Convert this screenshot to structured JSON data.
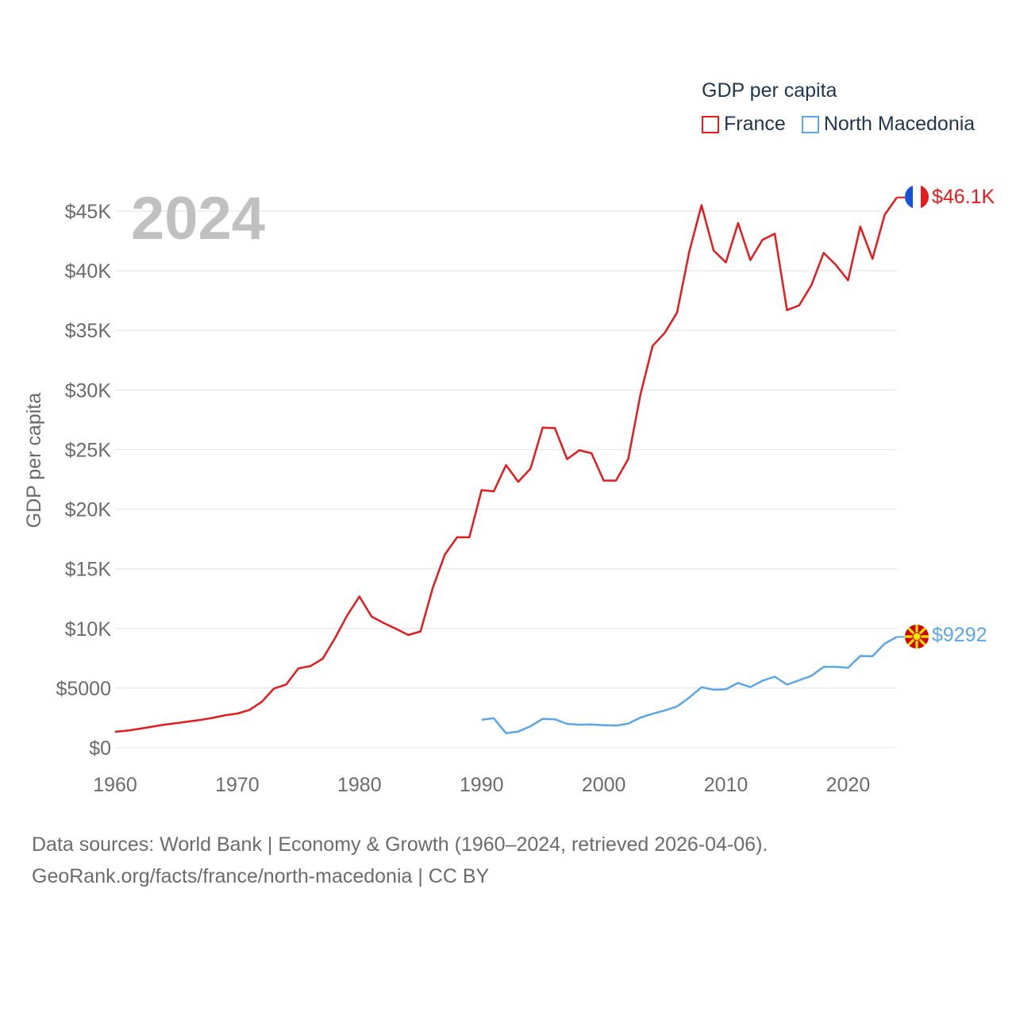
{
  "legend": {
    "title": "GDP per capita",
    "items": [
      {
        "label": "France",
        "color": "#e41a1c"
      },
      {
        "label": "North Macedonia",
        "color": "#5aa6e6"
      }
    ]
  },
  "year_label": "2024",
  "end_labels": {
    "france": "$46.1K",
    "north_macedonia": "$9292"
  },
  "source": {
    "line1": "Data sources: World Bank | Economy & Growth (1960–2024, retrieved 2026-04-06).",
    "line2": "GeoRank.org/facts/france/north-macedonia | CC BY"
  },
  "chart_data": {
    "type": "line",
    "title": "GDP per capita",
    "xlabel": "",
    "ylabel": "GDP per capita",
    "xlim": [
      1960,
      2024
    ],
    "ylim": [
      0,
      45000
    ],
    "x_ticks": [
      1960,
      1970,
      1980,
      1990,
      2000,
      2010,
      2020
    ],
    "y_ticks": [
      {
        "value": 0,
        "label": "$0"
      },
      {
        "value": 5000,
        "label": "$5000"
      },
      {
        "value": 10000,
        "label": "$10K"
      },
      {
        "value": 15000,
        "label": "$15K"
      },
      {
        "value": 20000,
        "label": "$20K"
      },
      {
        "value": 25000,
        "label": "$25K"
      },
      {
        "value": 30000,
        "label": "$30K"
      },
      {
        "value": 35000,
        "label": "$35K"
      },
      {
        "value": 40000,
        "label": "$40K"
      },
      {
        "value": 45000,
        "label": "$45K"
      }
    ],
    "grid": true,
    "series": [
      {
        "name": "France",
        "color": "#e41a1c",
        "x": [
          1960,
          1961,
          1962,
          1963,
          1964,
          1965,
          1966,
          1967,
          1968,
          1969,
          1970,
          1971,
          1972,
          1973,
          1974,
          1975,
          1976,
          1977,
          1978,
          1979,
          1980,
          1981,
          1982,
          1983,
          1984,
          1985,
          1986,
          1987,
          1988,
          1989,
          1990,
          1991,
          1992,
          1993,
          1994,
          1995,
          1996,
          1997,
          1998,
          1999,
          2000,
          2001,
          2002,
          2003,
          2004,
          2005,
          2006,
          2007,
          2008,
          2009,
          2010,
          2011,
          2012,
          2013,
          2014,
          2015,
          2016,
          2017,
          2018,
          2019,
          2020,
          2021,
          2022,
          2023,
          2024
        ],
        "values": [
          1340,
          1430,
          1590,
          1760,
          1930,
          2060,
          2200,
          2330,
          2500,
          2720,
          2860,
          3170,
          3840,
          4960,
          5300,
          6650,
          6850,
          7470,
          9180,
          11100,
          12680,
          11000,
          10450,
          9970,
          9450,
          9750,
          13400,
          16200,
          17650,
          17650,
          21600,
          21500,
          23700,
          22300,
          23400,
          26850,
          26800,
          24200,
          24950,
          24700,
          22400,
          22400,
          24200,
          29600,
          33700,
          34800,
          36500,
          41600,
          45500,
          41700,
          40700,
          44000,
          40900,
          42600,
          43100,
          36700,
          37100,
          38800,
          41500,
          40500,
          39200,
          43700,
          41000,
          44700,
          46150
        ]
      },
      {
        "name": "North Macedonia",
        "color": "#5aa6e6",
        "x": [
          1990,
          1991,
          1992,
          1993,
          1994,
          1995,
          1996,
          1997,
          1998,
          1999,
          2000,
          2001,
          2002,
          2003,
          2004,
          2005,
          2006,
          2007,
          2008,
          2009,
          2010,
          2011,
          2012,
          2013,
          2014,
          2015,
          2016,
          2017,
          2018,
          2019,
          2020,
          2021,
          2022,
          2023,
          2024
        ],
        "values": [
          2350,
          2470,
          1220,
          1350,
          1800,
          2420,
          2380,
          2000,
          1930,
          1950,
          1890,
          1860,
          2020,
          2530,
          2850,
          3120,
          3460,
          4210,
          5070,
          4860,
          4900,
          5430,
          5080,
          5620,
          5960,
          5290,
          5660,
          6030,
          6780,
          6780,
          6710,
          7690,
          7670,
          8730,
          9292
        ]
      }
    ]
  }
}
